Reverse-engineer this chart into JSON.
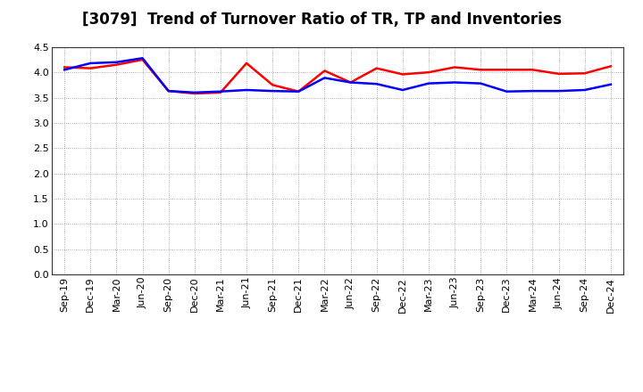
{
  "title": "[3079]  Trend of Turnover Ratio of TR, TP and Inventories",
  "x_labels": [
    "Sep-19",
    "Dec-19",
    "Mar-20",
    "Jun-20",
    "Sep-20",
    "Dec-20",
    "Mar-21",
    "Jun-21",
    "Sep-21",
    "Dec-21",
    "Mar-22",
    "Jun-22",
    "Sep-22",
    "Dec-22",
    "Mar-23",
    "Jun-23",
    "Sep-23",
    "Dec-23",
    "Mar-24",
    "Jun-24",
    "Sep-24",
    "Dec-24"
  ],
  "trade_receivables": [
    4.1,
    4.08,
    4.15,
    4.25,
    3.63,
    3.58,
    3.6,
    4.18,
    3.75,
    3.62,
    4.03,
    3.8,
    4.08,
    3.96,
    4.0,
    4.1,
    4.05,
    4.05,
    4.05,
    3.97,
    3.98,
    4.12
  ],
  "trade_payables": [
    4.05,
    4.18,
    4.2,
    4.28,
    3.63,
    3.6,
    3.62,
    3.65,
    3.63,
    3.62,
    3.89,
    3.8,
    3.77,
    3.65,
    3.78,
    3.8,
    3.78,
    3.62,
    3.63,
    3.63,
    3.65,
    3.76
  ],
  "inventories": [
    null,
    null,
    null,
    null,
    null,
    null,
    null,
    null,
    null,
    null,
    null,
    null,
    null,
    null,
    null,
    null,
    null,
    null,
    null,
    null,
    null,
    null
  ],
  "tr_color": "#ff0000",
  "tp_color": "#0000ff",
  "inv_color": "#008000",
  "ylim": [
    0.0,
    4.5
  ],
  "yticks": [
    0.0,
    0.5,
    1.0,
    1.5,
    2.0,
    2.5,
    3.0,
    3.5,
    4.0,
    4.5
  ],
  "background_color": "#ffffff",
  "grid_color": "#999999",
  "line_width": 1.8,
  "title_fontsize": 12,
  "legend_fontsize": 9.5,
  "tick_fontsize": 8
}
